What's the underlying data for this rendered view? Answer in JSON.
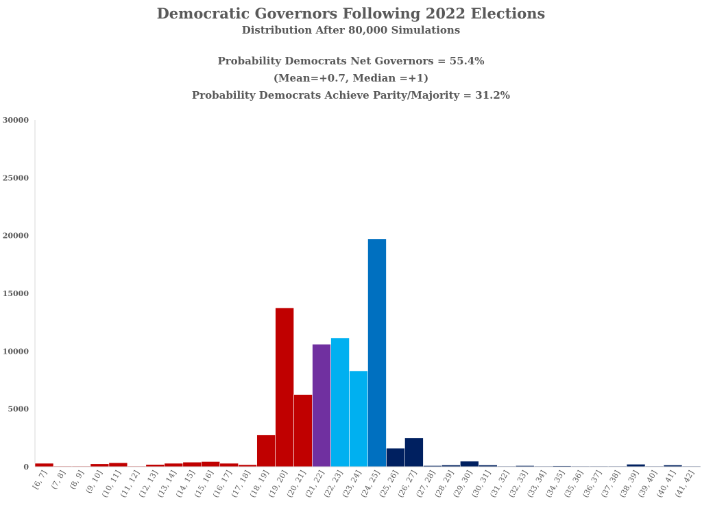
{
  "title": "Democratic Governors Following 2022 Elections",
  "subtitle": "Distribution After 80,000 Simulations",
  "stats": [
    "Probability Democrats Net Governors = 55.4%",
    "(Mean=+0.7, Median =+1)",
    "Probability Democrats Achieve Parity/Majority = 31.2%"
  ],
  "colors": {
    "red": "#c00000",
    "purple": "#7030a0",
    "light_blue": "#00b0f0",
    "blue": "#0070c0",
    "navy": "#002060"
  },
  "chart_data": {
    "type": "bar",
    "title": "Democratic Governors Following 2022 Elections",
    "subtitle": "Distribution After 80,000 Simulations",
    "xlabel": "",
    "ylabel": "",
    "ylim": [
      0,
      30000
    ],
    "yticks": [
      0,
      5000,
      10000,
      15000,
      20000,
      25000,
      30000
    ],
    "grid": false,
    "legend": "none",
    "categories": [
      "[6, 7]",
      "(7, 8]",
      "(8, 9]",
      "(9, 10]",
      "(10, 11]",
      "(11, 12]",
      "(12, 13]",
      "(13, 14]",
      "(14, 15]",
      "(15, 16]",
      "(16, 17]",
      "(17, 18]",
      "(18, 19]",
      "(19, 20]",
      "(20, 21]",
      "(21, 22]",
      "(22, 23]",
      "(23, 24]",
      "(24, 25]",
      "(25, 26]",
      "(26, 27]",
      "(27, 28]",
      "(28, 29]",
      "(29, 30]",
      "(30, 31]",
      "(31, 32]",
      "(32, 33]",
      "(33, 34]",
      "(34, 35]",
      "(35, 36]",
      "(36, 37]",
      "(37, 38]",
      "(38, 39]",
      "(39, 40]",
      "(40, 41]",
      "(41, 42]"
    ],
    "values": [
      300,
      20,
      20,
      250,
      350,
      20,
      200,
      300,
      400,
      450,
      300,
      180,
      2750,
      13750,
      6250,
      10600,
      11150,
      8300,
      19700,
      1600,
      2500,
      100,
      150,
      480,
      150,
      30,
      100,
      30,
      80,
      30,
      30,
      30,
      220,
      30,
      150,
      30
    ],
    "bar_colors": [
      "red",
      "red",
      "red",
      "red",
      "red",
      "red",
      "red",
      "red",
      "red",
      "red",
      "red",
      "red",
      "red",
      "red",
      "red",
      "purple",
      "light_blue",
      "light_blue",
      "blue",
      "navy",
      "navy",
      "navy",
      "navy",
      "navy",
      "navy",
      "navy",
      "navy",
      "navy",
      "navy",
      "navy",
      "navy",
      "navy",
      "navy",
      "navy",
      "navy",
      "navy"
    ]
  }
}
